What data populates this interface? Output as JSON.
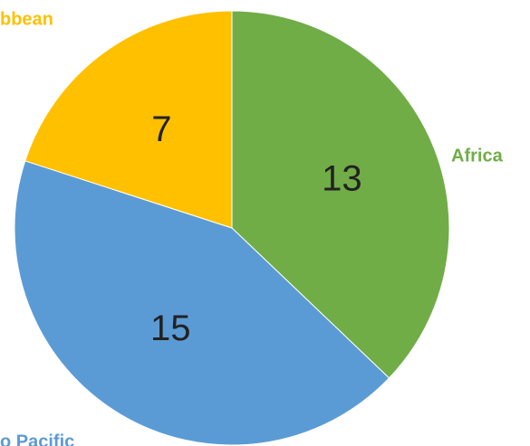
{
  "chart_data": {
    "type": "pie",
    "categories": [
      "Africa",
      "o Pacific",
      "bbean"
    ],
    "values": [
      13,
      15,
      7
    ],
    "colors": [
      "#70ad47",
      "#5b9bd5",
      "#ffc000"
    ]
  }
}
